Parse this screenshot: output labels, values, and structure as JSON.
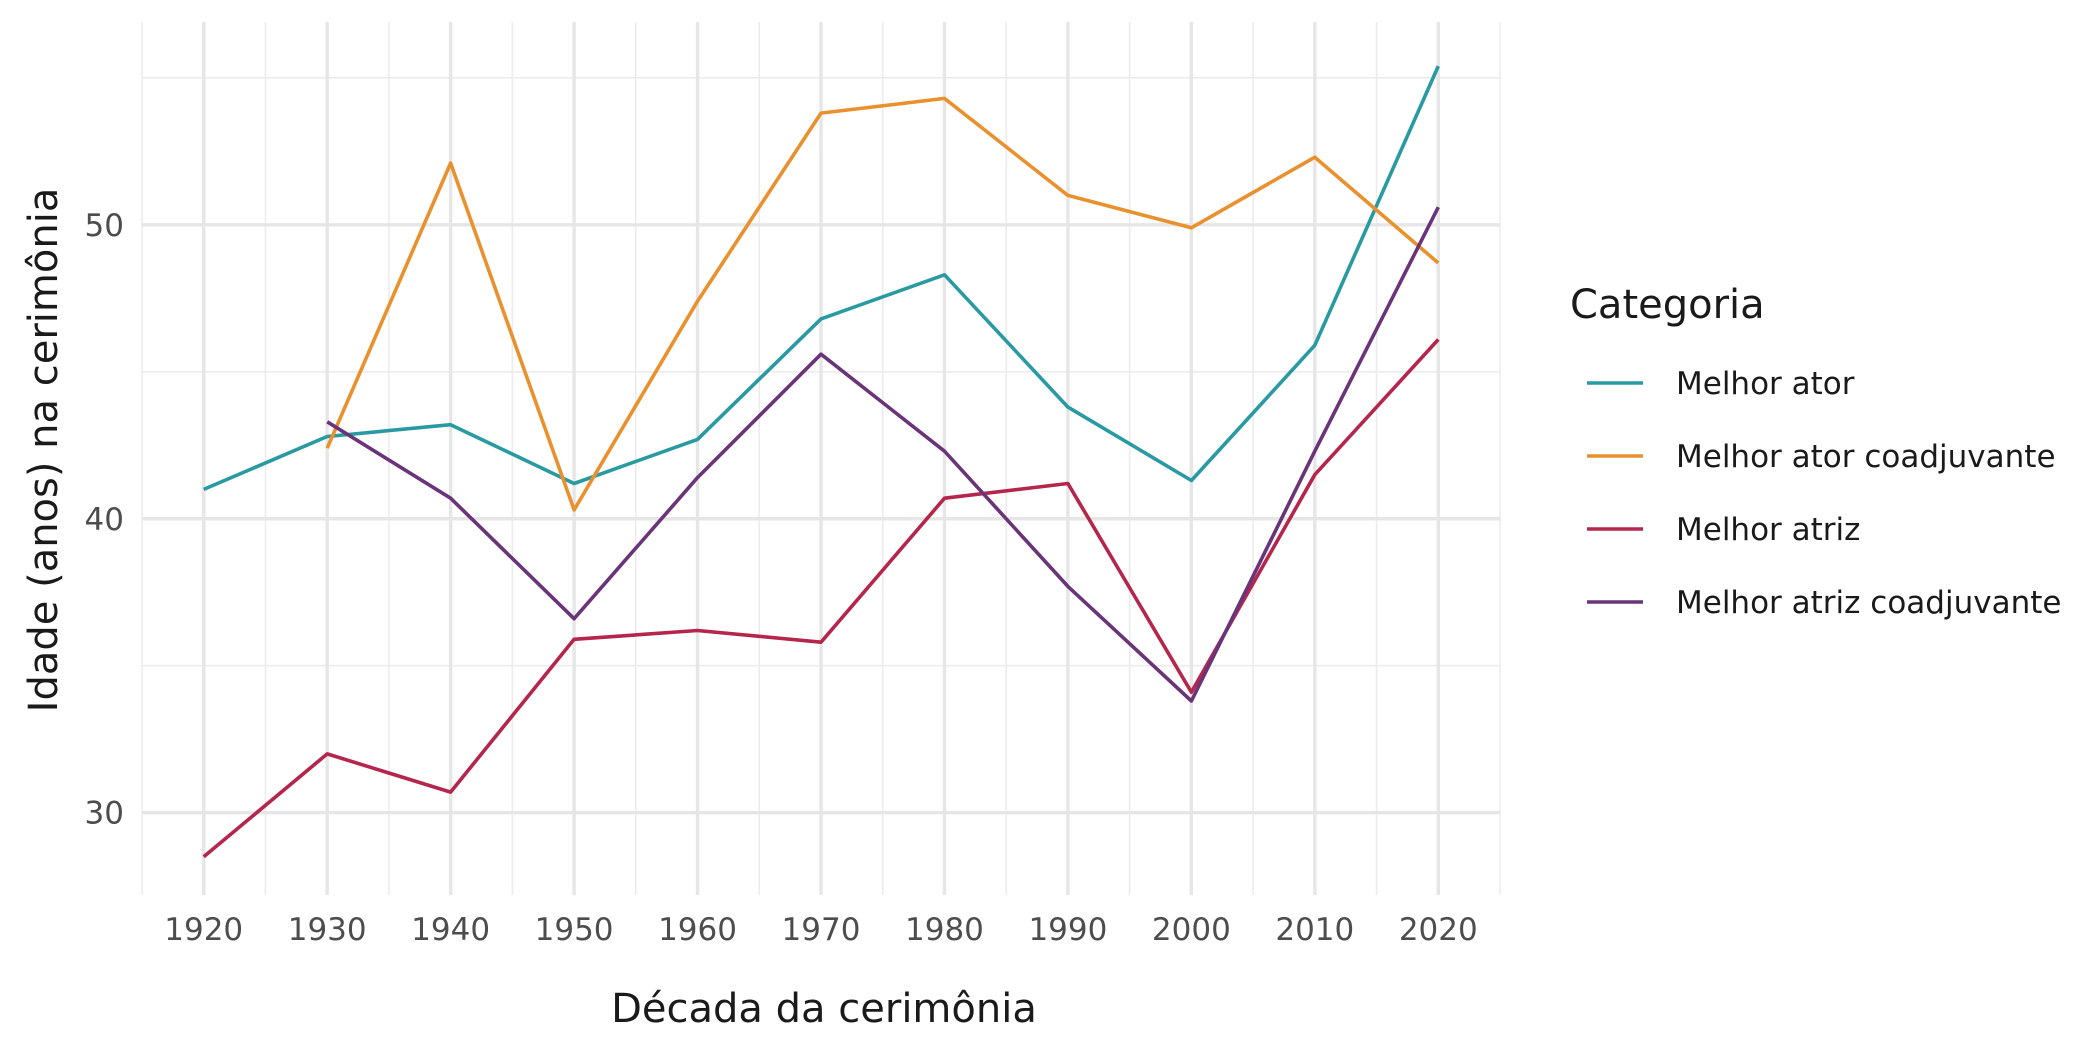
{
  "chart_data": {
    "type": "line",
    "title": "",
    "xlabel": "Década da cerimônia",
    "ylabel": "Idade (anos) na cerimônia",
    "x": [
      1920,
      1930,
      1940,
      1950,
      1960,
      1970,
      1980,
      1990,
      2000,
      2010,
      2020
    ],
    "x_ticks": [
      1920,
      1930,
      1940,
      1950,
      1960,
      1970,
      1980,
      1990,
      2000,
      2010,
      2020
    ],
    "y_ticks": [
      30,
      40,
      50
    ],
    "xlim": [
      1915,
      2025
    ],
    "ylim": [
      27.2,
      56.9
    ],
    "grid": true,
    "legend": {
      "title": "Categoria",
      "position": "right"
    },
    "series": [
      {
        "name": "Melhor ator",
        "color": "#2a9aa2",
        "values": [
          41.0,
          42.8,
          43.2,
          41.2,
          42.7,
          46.8,
          48.3,
          43.8,
          41.3,
          45.9,
          55.4
        ]
      },
      {
        "name": "Melhor ator coadjuvante",
        "color": "#e8912e",
        "values": [
          null,
          42.4,
          52.1,
          40.3,
          47.4,
          53.8,
          54.3,
          51.0,
          49.9,
          52.3,
          48.7
        ]
      },
      {
        "name": "Melhor atriz",
        "color": "#b5264d",
        "values": [
          28.5,
          32.0,
          30.7,
          35.9,
          36.2,
          35.8,
          40.7,
          41.2,
          34.1,
          41.5,
          46.1
        ]
      },
      {
        "name": "Melhor atriz coadjuvante",
        "color": "#6a3479",
        "values": [
          null,
          43.3,
          40.7,
          36.6,
          41.4,
          45.6,
          42.3,
          37.7,
          33.8,
          42.3,
          50.6
        ]
      }
    ]
  }
}
